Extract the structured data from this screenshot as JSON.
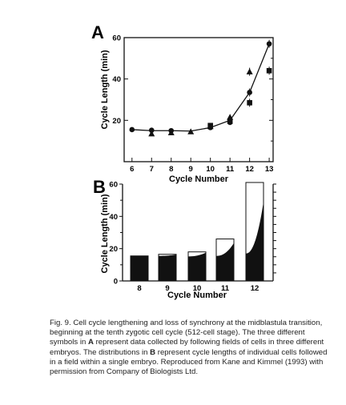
{
  "caption": {
    "fig_label": "Fig. 9.",
    "seg1": "Cell cycle lengthening and loss of synchrony at the midblastula transition, beginning at the tenth zygotic cell cycle (512-cell stage). The three different symbols in",
    "ref_a": "A",
    "seg2": "represent data collected by following fields of cells in three different embryos. The distributions in",
    "ref_b": "B",
    "seg3": "represent cycle lengths of individual cells followed in a field within a single embryo. Reproduced from Kane and Kimmel (1993) with permission from Company of Biologists Ltd."
  },
  "chart_data": [
    {
      "panel_label": "A",
      "type": "scatter",
      "xlabel": "Cycle Number",
      "ylabel": "Cycle Length (min)",
      "xlim": [
        5.6,
        13.2
      ],
      "ylim": [
        0,
        60
      ],
      "x_ticks": [
        6,
        7,
        8,
        9,
        10,
        11,
        12,
        13
      ],
      "y_ticks": [
        20,
        40,
        60
      ],
      "series": [
        {
          "marker": "circle",
          "points": [
            [
              6,
              15.5
            ],
            [
              7,
              15.2
            ],
            [
              8,
              15.0
            ],
            [
              10,
              16.5
            ],
            [
              11,
              19.0
            ],
            [
              12,
              33.5
            ],
            [
              13,
              57.0
            ]
          ]
        },
        {
          "marker": "triangle",
          "points": [
            [
              7,
              13.5
            ],
            [
              8,
              14.0
            ],
            [
              9,
              14.5
            ],
            [
              10,
              17.0
            ],
            [
              11,
              21.5
            ],
            [
              12,
              43.5
            ]
          ]
        },
        {
          "marker": "square",
          "points": [
            [
              10,
              17.5
            ],
            [
              11,
              19.5
            ],
            [
              12,
              28.5
            ],
            [
              13,
              44.0
            ]
          ]
        }
      ],
      "line": [
        [
          6,
          15.5
        ],
        [
          7,
          15.0
        ],
        [
          8,
          15.0
        ],
        [
          9,
          14.8
        ],
        [
          10,
          16.5
        ],
        [
          11,
          20.0
        ],
        [
          12,
          33.5
        ],
        [
          13,
          57.0
        ]
      ]
    },
    {
      "panel_label": "B",
      "type": "bar",
      "xlabel": "Cycle Number",
      "ylabel": "Cycle Length (min)",
      "ylim": [
        0,
        60
      ],
      "y_ticks": [
        0,
        20,
        40,
        60
      ],
      "categories": [
        "8",
        "9",
        "10",
        "11",
        "12"
      ],
      "max_values": [
        15.5,
        16.5,
        18.0,
        26.0,
        61.0
      ],
      "distribution": {
        "8": {
          "min": 15.5,
          "max": 15.5
        },
        "9": {
          "min": 15.5,
          "max": 16.3
        },
        "10": {
          "min": 15.2,
          "max": 17.5
        },
        "11": {
          "min": 15.5,
          "max": 23.5
        },
        "12": {
          "min": 17.0,
          "max": 49.0
        }
      }
    }
  ]
}
